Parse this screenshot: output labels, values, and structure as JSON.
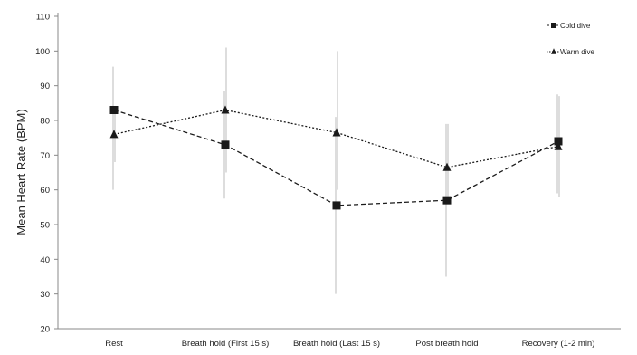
{
  "chart_data": {
    "type": "line",
    "ylabel": "Mean Heart Rate (BPM)",
    "xlabel": "",
    "ylim": [
      20,
      110
    ],
    "yticks": [
      20,
      30,
      40,
      50,
      60,
      70,
      80,
      90,
      100,
      110
    ],
    "categories": [
      "Rest",
      "Breath hold (First 15 s)",
      "Breath hold (Last 15 s)",
      "Post breath hold",
      "Recovery (1-2 min)"
    ],
    "series": [
      {
        "name": "Cold dive",
        "marker": "square",
        "line_style": "dashed",
        "values": [
          83,
          73,
          55.5,
          57,
          74
        ],
        "error_low": [
          60,
          57.5,
          30,
          35,
          59
        ],
        "error_high": [
          95.5,
          88.5,
          81,
          79,
          87.5
        ]
      },
      {
        "name": "Warm dive",
        "marker": "triangle",
        "line_style": "dotted",
        "values": [
          76,
          83,
          76.5,
          66.5,
          72.5
        ],
        "error_low": [
          68,
          65,
          60,
          56,
          58
        ],
        "error_high": [
          84,
          101,
          100,
          79,
          87
        ]
      }
    ],
    "legend_position": "top-right",
    "grid": false
  },
  "colors": {
    "series": "#1a1a1a",
    "error_bar": "#bbbbbb",
    "axis": "#888888"
  }
}
